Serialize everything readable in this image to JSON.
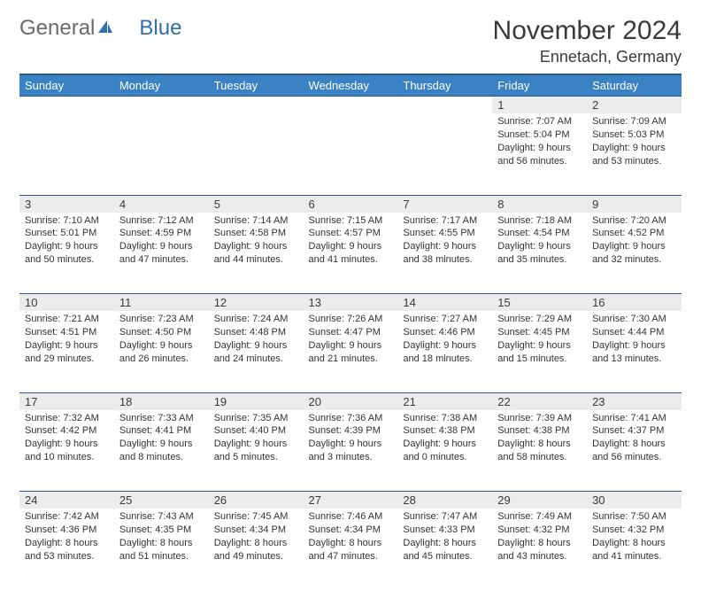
{
  "logo": {
    "text1": "General",
    "text2": "Blue"
  },
  "title": "November 2024",
  "location": "Ennetach, Germany",
  "dayHeaders": [
    "Sunday",
    "Monday",
    "Tuesday",
    "Wednesday",
    "Thursday",
    "Friday",
    "Saturday"
  ],
  "colors": {
    "headerBg": "#3b82c4",
    "headerText": "#ffffff",
    "dayNumBg": "#ececec",
    "border": "#2a5a8a",
    "logoGray": "#6a6a6a",
    "logoBlue": "#2f6faf"
  },
  "weeks": [
    [
      null,
      null,
      null,
      null,
      null,
      {
        "n": "1",
        "sr": "Sunrise: 7:07 AM",
        "ss": "Sunset: 5:04 PM",
        "d1": "Daylight: 9 hours",
        "d2": "and 56 minutes."
      },
      {
        "n": "2",
        "sr": "Sunrise: 7:09 AM",
        "ss": "Sunset: 5:03 PM",
        "d1": "Daylight: 9 hours",
        "d2": "and 53 minutes."
      }
    ],
    [
      {
        "n": "3",
        "sr": "Sunrise: 7:10 AM",
        "ss": "Sunset: 5:01 PM",
        "d1": "Daylight: 9 hours",
        "d2": "and 50 minutes."
      },
      {
        "n": "4",
        "sr": "Sunrise: 7:12 AM",
        "ss": "Sunset: 4:59 PM",
        "d1": "Daylight: 9 hours",
        "d2": "and 47 minutes."
      },
      {
        "n": "5",
        "sr": "Sunrise: 7:14 AM",
        "ss": "Sunset: 4:58 PM",
        "d1": "Daylight: 9 hours",
        "d2": "and 44 minutes."
      },
      {
        "n": "6",
        "sr": "Sunrise: 7:15 AM",
        "ss": "Sunset: 4:57 PM",
        "d1": "Daylight: 9 hours",
        "d2": "and 41 minutes."
      },
      {
        "n": "7",
        "sr": "Sunrise: 7:17 AM",
        "ss": "Sunset: 4:55 PM",
        "d1": "Daylight: 9 hours",
        "d2": "and 38 minutes."
      },
      {
        "n": "8",
        "sr": "Sunrise: 7:18 AM",
        "ss": "Sunset: 4:54 PM",
        "d1": "Daylight: 9 hours",
        "d2": "and 35 minutes."
      },
      {
        "n": "9",
        "sr": "Sunrise: 7:20 AM",
        "ss": "Sunset: 4:52 PM",
        "d1": "Daylight: 9 hours",
        "d2": "and 32 minutes."
      }
    ],
    [
      {
        "n": "10",
        "sr": "Sunrise: 7:21 AM",
        "ss": "Sunset: 4:51 PM",
        "d1": "Daylight: 9 hours",
        "d2": "and 29 minutes."
      },
      {
        "n": "11",
        "sr": "Sunrise: 7:23 AM",
        "ss": "Sunset: 4:50 PM",
        "d1": "Daylight: 9 hours",
        "d2": "and 26 minutes."
      },
      {
        "n": "12",
        "sr": "Sunrise: 7:24 AM",
        "ss": "Sunset: 4:48 PM",
        "d1": "Daylight: 9 hours",
        "d2": "and 24 minutes."
      },
      {
        "n": "13",
        "sr": "Sunrise: 7:26 AM",
        "ss": "Sunset: 4:47 PM",
        "d1": "Daylight: 9 hours",
        "d2": "and 21 minutes."
      },
      {
        "n": "14",
        "sr": "Sunrise: 7:27 AM",
        "ss": "Sunset: 4:46 PM",
        "d1": "Daylight: 9 hours",
        "d2": "and 18 minutes."
      },
      {
        "n": "15",
        "sr": "Sunrise: 7:29 AM",
        "ss": "Sunset: 4:45 PM",
        "d1": "Daylight: 9 hours",
        "d2": "and 15 minutes."
      },
      {
        "n": "16",
        "sr": "Sunrise: 7:30 AM",
        "ss": "Sunset: 4:44 PM",
        "d1": "Daylight: 9 hours",
        "d2": "and 13 minutes."
      }
    ],
    [
      {
        "n": "17",
        "sr": "Sunrise: 7:32 AM",
        "ss": "Sunset: 4:42 PM",
        "d1": "Daylight: 9 hours",
        "d2": "and 10 minutes."
      },
      {
        "n": "18",
        "sr": "Sunrise: 7:33 AM",
        "ss": "Sunset: 4:41 PM",
        "d1": "Daylight: 9 hours",
        "d2": "and 8 minutes."
      },
      {
        "n": "19",
        "sr": "Sunrise: 7:35 AM",
        "ss": "Sunset: 4:40 PM",
        "d1": "Daylight: 9 hours",
        "d2": "and 5 minutes."
      },
      {
        "n": "20",
        "sr": "Sunrise: 7:36 AM",
        "ss": "Sunset: 4:39 PM",
        "d1": "Daylight: 9 hours",
        "d2": "and 3 minutes."
      },
      {
        "n": "21",
        "sr": "Sunrise: 7:38 AM",
        "ss": "Sunset: 4:38 PM",
        "d1": "Daylight: 9 hours",
        "d2": "and 0 minutes."
      },
      {
        "n": "22",
        "sr": "Sunrise: 7:39 AM",
        "ss": "Sunset: 4:38 PM",
        "d1": "Daylight: 8 hours",
        "d2": "and 58 minutes."
      },
      {
        "n": "23",
        "sr": "Sunrise: 7:41 AM",
        "ss": "Sunset: 4:37 PM",
        "d1": "Daylight: 8 hours",
        "d2": "and 56 minutes."
      }
    ],
    [
      {
        "n": "24",
        "sr": "Sunrise: 7:42 AM",
        "ss": "Sunset: 4:36 PM",
        "d1": "Daylight: 8 hours",
        "d2": "and 53 minutes."
      },
      {
        "n": "25",
        "sr": "Sunrise: 7:43 AM",
        "ss": "Sunset: 4:35 PM",
        "d1": "Daylight: 8 hours",
        "d2": "and 51 minutes."
      },
      {
        "n": "26",
        "sr": "Sunrise: 7:45 AM",
        "ss": "Sunset: 4:34 PM",
        "d1": "Daylight: 8 hours",
        "d2": "and 49 minutes."
      },
      {
        "n": "27",
        "sr": "Sunrise: 7:46 AM",
        "ss": "Sunset: 4:34 PM",
        "d1": "Daylight: 8 hours",
        "d2": "and 47 minutes."
      },
      {
        "n": "28",
        "sr": "Sunrise: 7:47 AM",
        "ss": "Sunset: 4:33 PM",
        "d1": "Daylight: 8 hours",
        "d2": "and 45 minutes."
      },
      {
        "n": "29",
        "sr": "Sunrise: 7:49 AM",
        "ss": "Sunset: 4:32 PM",
        "d1": "Daylight: 8 hours",
        "d2": "and 43 minutes."
      },
      {
        "n": "30",
        "sr": "Sunrise: 7:50 AM",
        "ss": "Sunset: 4:32 PM",
        "d1": "Daylight: 8 hours",
        "d2": "and 41 minutes."
      }
    ]
  ]
}
